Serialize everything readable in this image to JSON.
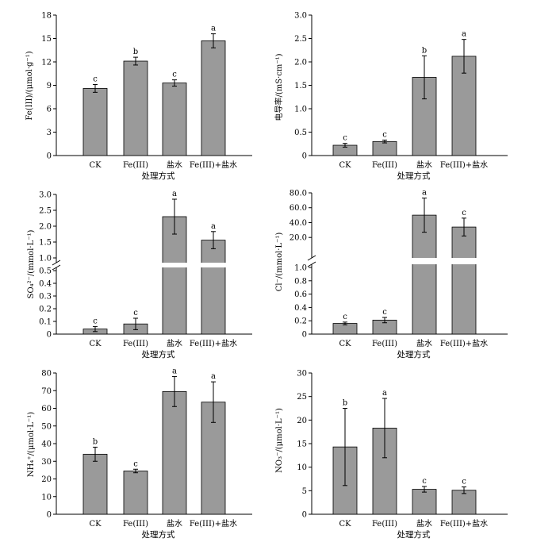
{
  "chart_data": [
    {
      "type": "bar",
      "id": "fe",
      "categories": [
        "CK",
        "Fe(III)",
        "盐水",
        "Fe(III)+盐水"
      ],
      "values": [
        8.6,
        12.1,
        9.3,
        14.7
      ],
      "errors": [
        0.5,
        0.5,
        0.4,
        0.9
      ],
      "letters": [
        "c",
        "b",
        "c",
        "a"
      ],
      "ylabel": "Fe(III)/(μmol·g⁻¹)",
      "xlabel": "处理方式",
      "ylim": [
        0,
        18
      ],
      "yticks": [
        "0",
        "3",
        "6",
        "9",
        "12",
        "15",
        "18"
      ]
    },
    {
      "type": "bar",
      "id": "ec",
      "categories": [
        "CK",
        "Fe(III)",
        "盐水",
        "Fe(III)+盐水"
      ],
      "values": [
        0.22,
        0.3,
        1.67,
        2.12
      ],
      "errors": [
        0.04,
        0.03,
        0.46,
        0.36
      ],
      "letters": [
        "c",
        "c",
        "b",
        "a"
      ],
      "ylabel": "电导率/(mS·cm⁻¹)",
      "xlabel": "处理方式",
      "ylim": [
        0,
        3.0
      ],
      "yticks": [
        "0",
        "0.5",
        "1.0",
        "1.5",
        "2.0",
        "2.5",
        "3.0"
      ]
    },
    {
      "type": "bar",
      "id": "so4",
      "broken_axis": true,
      "categories": [
        "CK",
        "Fe(III)",
        "盐水",
        "Fe(III)+盐水"
      ],
      "values": [
        0.04,
        0.08,
        2.3,
        1.56
      ],
      "errors": [
        0.02,
        0.045,
        0.55,
        0.27
      ],
      "letters": [
        "c",
        "c",
        "a",
        "a"
      ],
      "ylabel": "SO₄²⁻/(mmol·L⁻¹)",
      "xlabel": "处理方式",
      "ylim_lower": [
        0,
        0.5
      ],
      "ylim_upper": [
        1.0,
        3.0
      ],
      "yticks_lower": [
        "0",
        "0.1",
        "0.2",
        "0.3",
        "0.4",
        "0.5"
      ],
      "yticks_upper": [
        "1.0",
        "1.5",
        "2.0",
        "2.5",
        "3.0"
      ]
    },
    {
      "type": "bar",
      "id": "cl",
      "broken_axis": true,
      "categories": [
        "CK",
        "Fe(III)",
        "盐水",
        "Fe(III)+盐水"
      ],
      "values": [
        0.16,
        0.21,
        50,
        34
      ],
      "errors": [
        0.02,
        0.04,
        23,
        12
      ],
      "letters": [
        "c",
        "c",
        "a",
        "c"
      ],
      "ylabel": "Cl⁻/(mmol·L⁻¹)",
      "xlabel": "处理方式",
      "ylim_lower": [
        0,
        1.0
      ],
      "ylim_upper": [
        1.0,
        80.0
      ],
      "yticks_lower": [
        "0",
        "0.2",
        "0.4",
        "0.6",
        "0.8",
        "1.0"
      ],
      "yticks_upper": [
        "20.0",
        "40.0",
        "60.0",
        "80.0"
      ]
    },
    {
      "type": "bar",
      "id": "nh4",
      "categories": [
        "CK",
        "Fe(III)",
        "盐水",
        "Fe(III)+盐水"
      ],
      "values": [
        34,
        24.5,
        69.5,
        63.5
      ],
      "errors": [
        4,
        1,
        8.5,
        11.5
      ],
      "letters": [
        "b",
        "c",
        "a",
        "a"
      ],
      "ylabel": "NH₄⁺/(μmol·L⁻¹)",
      "xlabel": "处理方式",
      "ylim": [
        0,
        80
      ],
      "yticks": [
        "0",
        "10",
        "20",
        "30",
        "40",
        "50",
        "60",
        "70",
        "80"
      ]
    },
    {
      "type": "bar",
      "id": "no3",
      "categories": [
        "CK",
        "Fe(III)",
        "盐水",
        "Fe(III)+盐水"
      ],
      "values": [
        14.3,
        18.3,
        5.3,
        5.1
      ],
      "errors": [
        8.2,
        6.3,
        0.6,
        0.7
      ],
      "letters": [
        "b",
        "a",
        "c",
        "c"
      ],
      "ylabel": "NO₃⁻/(μmol·L⁻¹)",
      "xlabel": "处理方式",
      "ylim": [
        0,
        30
      ],
      "yticks": [
        "0",
        "5",
        "10",
        "15",
        "20",
        "25",
        "30"
      ]
    }
  ]
}
